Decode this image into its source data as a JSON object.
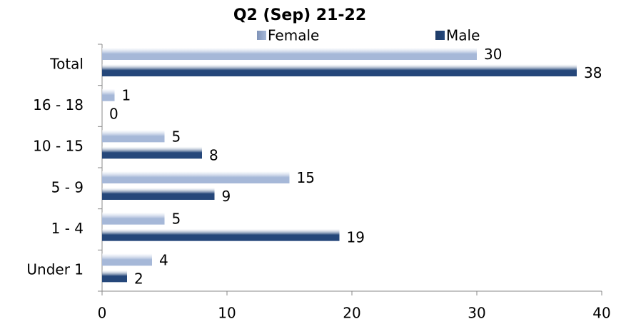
{
  "chart_data": {
    "type": "bar",
    "orientation": "horizontal",
    "title": "Q2 (Sep) 21-22",
    "categories": [
      "Total",
      "16 - 18",
      "10 - 15",
      "5 - 9",
      "1 - 4",
      "Under 1"
    ],
    "series": [
      {
        "name": "Female",
        "color": "#a6b8d8",
        "values": [
          30,
          1,
          5,
          15,
          5,
          4
        ]
      },
      {
        "name": "Male",
        "color": "#25477a",
        "values": [
          38,
          0,
          8,
          9,
          19,
          2
        ]
      }
    ],
    "xlim": [
      0,
      40
    ],
    "xticks": [
      0,
      10,
      20,
      30,
      40
    ],
    "legend": "top"
  }
}
